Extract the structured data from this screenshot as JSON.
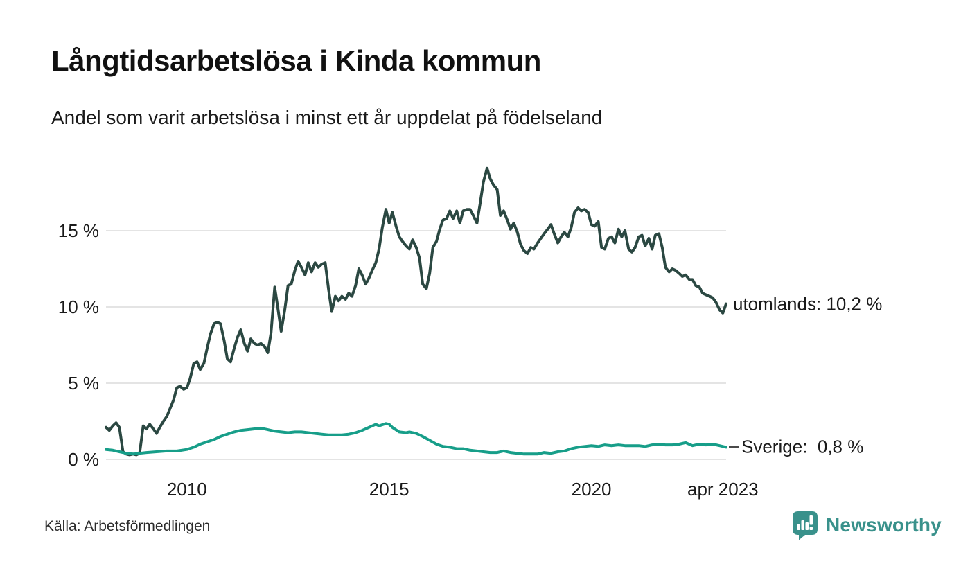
{
  "footer": {
    "source": "Källa: Arbetsförmedlingen",
    "brand": "Newsworthy"
  },
  "colors": {
    "utomlands_line": "#2b4842",
    "sverige_line": "#179e89",
    "grid": "#e4e4e4",
    "text": "#1a1a1a",
    "brand": "#39918b"
  },
  "chart_data": {
    "type": "line",
    "title": "Långtidsarbetslösa i Kinda kommun",
    "subtitle": "Andel som varit arbetslösa i minst ett år uppdelat på födelseland",
    "xlabel": "",
    "ylabel": "",
    "grid": "horizontal",
    "legend_position": "right-end-of-line",
    "xlim": [
      2008.0,
      2023.33
    ],
    "ylim": [
      0,
      19.5
    ],
    "yticks": [
      {
        "value": 0,
        "label": "0 %"
      },
      {
        "value": 5,
        "label": "5 %"
      },
      {
        "value": 10,
        "label": "10 %"
      },
      {
        "value": 15,
        "label": "15 %"
      }
    ],
    "xticks": [
      {
        "year": 2010,
        "label": "2010"
      },
      {
        "year": 2015,
        "label": "2015"
      },
      {
        "year": 2020,
        "label": "2020"
      },
      {
        "year": 2023.25,
        "label": "apr 2023"
      }
    ],
    "series": [
      {
        "id": "utomlands",
        "name": "utomlands",
        "end_label": "utomlands: 10,2 %",
        "end_value": "10,2 %",
        "color": "#2b4842",
        "leader_dash": false,
        "points": [
          [
            2008.0,
            2.1
          ],
          [
            2008.08,
            1.9
          ],
          [
            2008.17,
            2.2
          ],
          [
            2008.25,
            2.4
          ],
          [
            2008.33,
            2.1
          ],
          [
            2008.42,
            0.5
          ],
          [
            2008.5,
            0.35
          ],
          [
            2008.58,
            0.3
          ],
          [
            2008.67,
            0.35
          ],
          [
            2008.75,
            0.3
          ],
          [
            2008.83,
            0.4
          ],
          [
            2008.92,
            2.2
          ],
          [
            2009.0,
            2.0
          ],
          [
            2009.08,
            2.3
          ],
          [
            2009.17,
            2.0
          ],
          [
            2009.25,
            1.7
          ],
          [
            2009.33,
            2.1
          ],
          [
            2009.42,
            2.5
          ],
          [
            2009.5,
            2.8
          ],
          [
            2009.58,
            3.3
          ],
          [
            2009.67,
            3.9
          ],
          [
            2009.75,
            4.7
          ],
          [
            2009.83,
            4.8
          ],
          [
            2009.92,
            4.6
          ],
          [
            2010.0,
            4.7
          ],
          [
            2010.08,
            5.3
          ],
          [
            2010.17,
            6.3
          ],
          [
            2010.25,
            6.4
          ],
          [
            2010.33,
            5.9
          ],
          [
            2010.42,
            6.3
          ],
          [
            2010.5,
            7.3
          ],
          [
            2010.58,
            8.2
          ],
          [
            2010.67,
            8.9
          ],
          [
            2010.75,
            9.0
          ],
          [
            2010.83,
            8.9
          ],
          [
            2010.92,
            7.8
          ],
          [
            2011.0,
            6.6
          ],
          [
            2011.08,
            6.4
          ],
          [
            2011.17,
            7.3
          ],
          [
            2011.25,
            8.0
          ],
          [
            2011.33,
            8.5
          ],
          [
            2011.42,
            7.6
          ],
          [
            2011.5,
            7.1
          ],
          [
            2011.58,
            7.9
          ],
          [
            2011.67,
            7.6
          ],
          [
            2011.75,
            7.5
          ],
          [
            2011.83,
            7.6
          ],
          [
            2011.92,
            7.4
          ],
          [
            2012.0,
            7.0
          ],
          [
            2012.08,
            8.3
          ],
          [
            2012.17,
            11.3
          ],
          [
            2012.25,
            9.9
          ],
          [
            2012.33,
            8.4
          ],
          [
            2012.42,
            9.8
          ],
          [
            2012.5,
            11.4
          ],
          [
            2012.58,
            11.5
          ],
          [
            2012.67,
            12.4
          ],
          [
            2012.75,
            13.0
          ],
          [
            2012.83,
            12.6
          ],
          [
            2012.92,
            12.1
          ],
          [
            2013.0,
            12.9
          ],
          [
            2013.08,
            12.3
          ],
          [
            2013.17,
            12.9
          ],
          [
            2013.25,
            12.6
          ],
          [
            2013.33,
            12.8
          ],
          [
            2013.42,
            12.9
          ],
          [
            2013.5,
            11.2
          ],
          [
            2013.58,
            9.7
          ],
          [
            2013.67,
            10.7
          ],
          [
            2013.75,
            10.4
          ],
          [
            2013.83,
            10.7
          ],
          [
            2013.92,
            10.5
          ],
          [
            2014.0,
            10.9
          ],
          [
            2014.08,
            10.7
          ],
          [
            2014.17,
            11.4
          ],
          [
            2014.25,
            12.5
          ],
          [
            2014.33,
            12.1
          ],
          [
            2014.42,
            11.5
          ],
          [
            2014.5,
            11.9
          ],
          [
            2014.58,
            12.4
          ],
          [
            2014.67,
            12.9
          ],
          [
            2014.75,
            13.8
          ],
          [
            2014.83,
            15.2
          ],
          [
            2014.92,
            16.4
          ],
          [
            2015.0,
            15.5
          ],
          [
            2015.08,
            16.2
          ],
          [
            2015.17,
            15.3
          ],
          [
            2015.25,
            14.6
          ],
          [
            2015.33,
            14.3
          ],
          [
            2015.42,
            14.0
          ],
          [
            2015.5,
            13.8
          ],
          [
            2015.58,
            14.4
          ],
          [
            2015.67,
            13.9
          ],
          [
            2015.75,
            13.2
          ],
          [
            2015.83,
            11.5
          ],
          [
            2015.92,
            11.2
          ],
          [
            2016.0,
            12.2
          ],
          [
            2016.08,
            13.9
          ],
          [
            2016.17,
            14.3
          ],
          [
            2016.25,
            15.1
          ],
          [
            2016.33,
            15.7
          ],
          [
            2016.42,
            15.8
          ],
          [
            2016.5,
            16.3
          ],
          [
            2016.58,
            15.8
          ],
          [
            2016.67,
            16.3
          ],
          [
            2016.75,
            15.5
          ],
          [
            2016.83,
            16.3
          ],
          [
            2016.92,
            16.4
          ],
          [
            2017.0,
            16.4
          ],
          [
            2017.08,
            16.0
          ],
          [
            2017.17,
            15.5
          ],
          [
            2017.25,
            16.8
          ],
          [
            2017.33,
            18.2
          ],
          [
            2017.42,
            19.1
          ],
          [
            2017.5,
            18.4
          ],
          [
            2017.58,
            18.0
          ],
          [
            2017.67,
            17.7
          ],
          [
            2017.75,
            16.0
          ],
          [
            2017.83,
            16.3
          ],
          [
            2017.92,
            15.7
          ],
          [
            2018.0,
            15.1
          ],
          [
            2018.08,
            15.5
          ],
          [
            2018.17,
            14.9
          ],
          [
            2018.25,
            14.1
          ],
          [
            2018.33,
            13.7
          ],
          [
            2018.42,
            13.5
          ],
          [
            2018.5,
            13.9
          ],
          [
            2018.58,
            13.8
          ],
          [
            2018.67,
            14.2
          ],
          [
            2018.75,
            14.5
          ],
          [
            2018.83,
            14.8
          ],
          [
            2018.92,
            15.1
          ],
          [
            2019.0,
            15.4
          ],
          [
            2019.08,
            14.8
          ],
          [
            2019.17,
            14.2
          ],
          [
            2019.25,
            14.6
          ],
          [
            2019.33,
            14.9
          ],
          [
            2019.42,
            14.6
          ],
          [
            2019.5,
            15.2
          ],
          [
            2019.58,
            16.2
          ],
          [
            2019.67,
            16.5
          ],
          [
            2019.75,
            16.3
          ],
          [
            2019.83,
            16.4
          ],
          [
            2019.92,
            16.2
          ],
          [
            2020.0,
            15.4
          ],
          [
            2020.08,
            15.3
          ],
          [
            2020.17,
            15.6
          ],
          [
            2020.25,
            13.9
          ],
          [
            2020.33,
            13.8
          ],
          [
            2020.42,
            14.5
          ],
          [
            2020.5,
            14.6
          ],
          [
            2020.58,
            14.2
          ],
          [
            2020.67,
            15.1
          ],
          [
            2020.75,
            14.6
          ],
          [
            2020.83,
            15.0
          ],
          [
            2020.92,
            13.8
          ],
          [
            2021.0,
            13.6
          ],
          [
            2021.08,
            13.9
          ],
          [
            2021.17,
            14.6
          ],
          [
            2021.25,
            14.7
          ],
          [
            2021.33,
            14.0
          ],
          [
            2021.42,
            14.5
          ],
          [
            2021.5,
            13.8
          ],
          [
            2021.58,
            14.7
          ],
          [
            2021.67,
            14.8
          ],
          [
            2021.75,
            13.9
          ],
          [
            2021.83,
            12.6
          ],
          [
            2021.92,
            12.3
          ],
          [
            2022.0,
            12.5
          ],
          [
            2022.08,
            12.4
          ],
          [
            2022.17,
            12.2
          ],
          [
            2022.25,
            12.0
          ],
          [
            2022.33,
            12.1
          ],
          [
            2022.42,
            11.8
          ],
          [
            2022.5,
            11.8
          ],
          [
            2022.58,
            11.4
          ],
          [
            2022.67,
            11.3
          ],
          [
            2022.75,
            10.9
          ],
          [
            2022.83,
            10.8
          ],
          [
            2022.92,
            10.7
          ],
          [
            2023.0,
            10.6
          ],
          [
            2023.08,
            10.3
          ],
          [
            2023.17,
            9.8
          ],
          [
            2023.25,
            9.6
          ],
          [
            2023.33,
            10.2
          ]
        ]
      },
      {
        "id": "sverige",
        "name": "Sverige",
        "end_label": "Sverige:  0,8 %",
        "end_value": "0,8 %",
        "color": "#179e89",
        "leader_dash": true,
        "points": [
          [
            2008.0,
            0.65
          ],
          [
            2008.17,
            0.6
          ],
          [
            2008.33,
            0.5
          ],
          [
            2008.5,
            0.4
          ],
          [
            2008.67,
            0.35
          ],
          [
            2008.83,
            0.4
          ],
          [
            2009.0,
            0.45
          ],
          [
            2009.25,
            0.5
          ],
          [
            2009.5,
            0.55
          ],
          [
            2009.75,
            0.55
          ],
          [
            2010.0,
            0.65
          ],
          [
            2010.17,
            0.8
          ],
          [
            2010.33,
            1.0
          ],
          [
            2010.5,
            1.15
          ],
          [
            2010.67,
            1.3
          ],
          [
            2010.83,
            1.5
          ],
          [
            2011.0,
            1.65
          ],
          [
            2011.17,
            1.8
          ],
          [
            2011.33,
            1.9
          ],
          [
            2011.5,
            1.95
          ],
          [
            2011.67,
            2.0
          ],
          [
            2011.83,
            2.05
          ],
          [
            2012.0,
            1.95
          ],
          [
            2012.17,
            1.85
          ],
          [
            2012.33,
            1.8
          ],
          [
            2012.5,
            1.75
          ],
          [
            2012.67,
            1.8
          ],
          [
            2012.83,
            1.8
          ],
          [
            2013.0,
            1.75
          ],
          [
            2013.17,
            1.7
          ],
          [
            2013.33,
            1.65
          ],
          [
            2013.5,
            1.6
          ],
          [
            2013.67,
            1.6
          ],
          [
            2013.83,
            1.6
          ],
          [
            2014.0,
            1.65
          ],
          [
            2014.17,
            1.75
          ],
          [
            2014.33,
            1.9
          ],
          [
            2014.5,
            2.1
          ],
          [
            2014.67,
            2.3
          ],
          [
            2014.75,
            2.2
          ],
          [
            2014.92,
            2.35
          ],
          [
            2015.0,
            2.3
          ],
          [
            2015.08,
            2.1
          ],
          [
            2015.25,
            1.8
          ],
          [
            2015.42,
            1.75
          ],
          [
            2015.5,
            1.8
          ],
          [
            2015.67,
            1.7
          ],
          [
            2015.83,
            1.5
          ],
          [
            2016.0,
            1.25
          ],
          [
            2016.17,
            1.0
          ],
          [
            2016.33,
            0.85
          ],
          [
            2016.5,
            0.8
          ],
          [
            2016.67,
            0.7
          ],
          [
            2016.83,
            0.7
          ],
          [
            2017.0,
            0.6
          ],
          [
            2017.17,
            0.55
          ],
          [
            2017.33,
            0.5
          ],
          [
            2017.5,
            0.45
          ],
          [
            2017.67,
            0.45
          ],
          [
            2017.83,
            0.55
          ],
          [
            2018.0,
            0.45
          ],
          [
            2018.17,
            0.4
          ],
          [
            2018.33,
            0.35
          ],
          [
            2018.5,
            0.35
          ],
          [
            2018.67,
            0.35
          ],
          [
            2018.83,
            0.45
          ],
          [
            2019.0,
            0.4
          ],
          [
            2019.17,
            0.5
          ],
          [
            2019.33,
            0.55
          ],
          [
            2019.5,
            0.7
          ],
          [
            2019.67,
            0.8
          ],
          [
            2019.83,
            0.85
          ],
          [
            2020.0,
            0.9
          ],
          [
            2020.17,
            0.85
          ],
          [
            2020.33,
            0.95
          ],
          [
            2020.5,
            0.9
          ],
          [
            2020.67,
            0.95
          ],
          [
            2020.83,
            0.9
          ],
          [
            2021.0,
            0.9
          ],
          [
            2021.17,
            0.9
          ],
          [
            2021.33,
            0.85
          ],
          [
            2021.5,
            0.95
          ],
          [
            2021.67,
            1.0
          ],
          [
            2021.83,
            0.95
          ],
          [
            2022.0,
            0.95
          ],
          [
            2022.17,
            1.0
          ],
          [
            2022.33,
            1.1
          ],
          [
            2022.5,
            0.9
          ],
          [
            2022.67,
            1.0
          ],
          [
            2022.83,
            0.95
          ],
          [
            2023.0,
            1.0
          ],
          [
            2023.17,
            0.9
          ],
          [
            2023.33,
            0.8
          ]
        ]
      }
    ]
  }
}
